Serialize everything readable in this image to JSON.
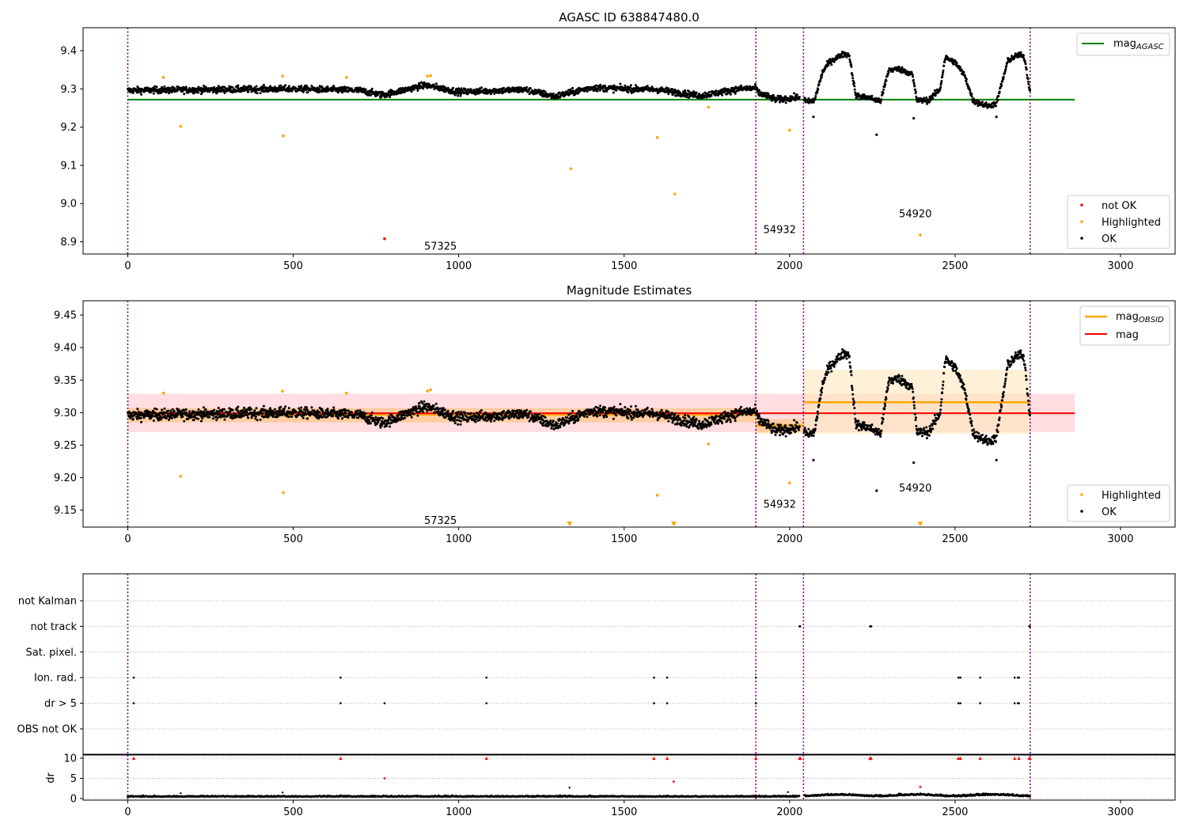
{
  "figure": {
    "title1": "AGASC ID 638847480.0",
    "title2": "Magnitude Estimates"
  },
  "colors": {
    "ok": "#000000",
    "not_ok": "#ff0000",
    "highlighted": "#ffa500",
    "mag_agasc": "#008000",
    "mag_obsid": "#ffa500",
    "mag": "#ff0000",
    "obs_separator": "#800080",
    "band_global": "#ffb3ba",
    "band_obs": "#fde6b8"
  },
  "chart_data": [
    {
      "type": "scatter",
      "title": "AGASC ID 638847480.0",
      "xlim": [
        -135,
        3165
      ],
      "ylim": [
        8.868,
        9.46
      ],
      "xticks": [
        0,
        500,
        1000,
        1500,
        2000,
        2500,
        3000
      ],
      "yticks": [
        8.9,
        9.0,
        9.1,
        9.2,
        9.3,
        9.4
      ],
      "ytick_labels": [
        "8.9",
        "9.0",
        "9.1",
        "9.2",
        "9.3",
        "9.4"
      ],
      "observation_boundaries": [
        0,
        1898,
        2042,
        2727
      ],
      "observation_labels": [
        {
          "text": "57325",
          "x": 945,
          "y": 8.89
        },
        {
          "text": "54932",
          "x": 1970,
          "y": 8.933
        },
        {
          "text": "54920",
          "x": 2380,
          "y": 8.975
        }
      ],
      "lines": [
        {
          "name": "mag_AGASC",
          "y": 9.272,
          "x_range": [
            0,
            2862
          ],
          "color": "#008000"
        }
      ],
      "legends": [
        {
          "position": "upper right",
          "entries": [
            {
              "label": "mag",
              "sub": "AGASC",
              "kind": "line",
              "color": "#008000"
            }
          ]
        },
        {
          "position": "lower right",
          "entries": [
            {
              "label": "not OK",
              "kind": "marker",
              "color": "#ff0000"
            },
            {
              "label": "Highlighted",
              "kind": "marker",
              "color": "#ffa500"
            },
            {
              "label": "OK",
              "kind": "marker",
              "color": "#000000"
            }
          ]
        }
      ],
      "series": [
        {
          "name": "OK",
          "description": "~2700 black points following the light curve shown in both magnitude panels"
        },
        {
          "name": "Highlighted",
          "points": [
            [
              108,
              9.33
            ],
            [
              160,
              9.202
            ],
            [
              468,
              9.333
            ],
            [
              470,
              9.177
            ],
            [
              661,
              9.33
            ],
            [
              906,
              9.333
            ],
            [
              915,
              9.335
            ],
            [
              1339,
              9.091
            ],
            [
              1600,
              9.173
            ],
            [
              1653,
              9.025
            ],
            [
              1755,
              9.252
            ],
            [
              2000,
              9.192
            ],
            [
              2395,
              8.918
            ]
          ]
        },
        {
          "name": "not OK",
          "points": [
            [
              776,
              8.908
            ]
          ]
        }
      ]
    },
    {
      "type": "scatter",
      "title": "Magnitude Estimates",
      "xlim": [
        -135,
        3165
      ],
      "ylim": [
        9.124,
        9.472
      ],
      "xticks": [
        0,
        500,
        1000,
        1500,
        2000,
        2500,
        3000
      ],
      "yticks": [
        9.15,
        9.2,
        9.25,
        9.3,
        9.35,
        9.4,
        9.45
      ],
      "ytick_labels": [
        "9.15",
        "9.20",
        "9.25",
        "9.30",
        "9.35",
        "9.40",
        "9.45"
      ],
      "observation_boundaries": [
        0,
        1898,
        2042,
        2727
      ],
      "observation_labels": [
        {
          "text": "57325",
          "x": 945,
          "y": 9.135
        },
        {
          "text": "54932",
          "x": 1970,
          "y": 9.16
        },
        {
          "text": "54920",
          "x": 2380,
          "y": 9.185
        }
      ],
      "bands": [
        {
          "name": "mag ± std",
          "x_range": [
            0,
            2862
          ],
          "y_range": [
            9.27,
            9.329
          ],
          "color": "#ffb3ba"
        },
        {
          "name": "obs 57325 ± std",
          "x_range": [
            0,
            1898
          ],
          "y_range": [
            9.285,
            9.307
          ],
          "color": "#ffa500"
        },
        {
          "name": "obs 54932 ± std",
          "x_range": [
            1898,
            2042
          ],
          "y_range": [
            9.268,
            9.29
          ],
          "color": "#ffa500"
        },
        {
          "name": "obs 54920 ± std",
          "x_range": [
            2042,
            2727
          ],
          "y_range": [
            9.267,
            9.366
          ],
          "color": "#fde6b8"
        }
      ],
      "lines": [
        {
          "name": "mag_OBSID",
          "segments": [
            {
              "x": [
                0,
                1898
              ],
              "y": 9.297
            },
            {
              "x": [
                1898,
                2042
              ],
              "y": 9.28
            },
            {
              "x": [
                2042,
                2727
              ],
              "y": 9.316
            }
          ],
          "color": "#ffa500"
        },
        {
          "name": "mag",
          "y": 9.299,
          "x_range": [
            0,
            2862
          ],
          "color": "#ff0000"
        }
      ],
      "legends": [
        {
          "position": "upper right",
          "entries": [
            {
              "label": "mag",
              "sub": "OBSID",
              "kind": "line",
              "color": "#ffa500"
            },
            {
              "label": "mag",
              "kind": "line",
              "color": "#ff0000"
            }
          ]
        },
        {
          "position": "lower right",
          "entries": [
            {
              "label": "Highlighted",
              "kind": "marker",
              "color": "#ffa500"
            },
            {
              "label": "OK",
              "kind": "marker",
              "color": "#000000"
            }
          ]
        }
      ],
      "series": [
        {
          "name": "Highlighted",
          "points": [
            [
              108,
              9.33
            ],
            [
              160,
              9.202
            ],
            [
              468,
              9.333
            ],
            [
              470,
              9.177
            ],
            [
              661,
              9.33
            ],
            [
              906,
              9.333
            ],
            [
              915,
              9.335
            ],
            [
              1600,
              9.173
            ],
            [
              1755,
              9.252
            ],
            [
              2000,
              9.192
            ]
          ]
        },
        {
          "name": "Highlighted (below axis)",
          "points": [
            [
              1335,
              9.124
            ],
            [
              1650,
              9.124
            ],
            [
              2395,
              9.124
            ]
          ]
        },
        {
          "name": "OK",
          "light_curve": [
            [
              0,
              9.296
            ],
            [
              500,
              9.3
            ],
            [
              700,
              9.296
            ],
            [
              770,
              9.284
            ],
            [
              900,
              9.31
            ],
            [
              1000,
              9.292
            ],
            [
              1200,
              9.298
            ],
            [
              1290,
              9.28
            ],
            [
              1400,
              9.303
            ],
            [
              1600,
              9.298
            ],
            [
              1730,
              9.282
            ],
            [
              1850,
              9.3
            ],
            [
              1898,
              9.302
            ],
            [
              1905,
              9.29
            ],
            [
              1960,
              9.272
            ],
            [
              2000,
              9.275
            ],
            [
              2042,
              9.28
            ],
            [
              2050,
              9.265
            ],
            [
              2075,
              9.27
            ],
            [
              2100,
              9.345
            ],
            [
              2120,
              9.37
            ],
            [
              2160,
              9.39
            ],
            [
              2180,
              9.39
            ],
            [
              2200,
              9.282
            ],
            [
              2240,
              9.277
            ],
            [
              2275,
              9.268
            ],
            [
              2300,
              9.35
            ],
            [
              2330,
              9.352
            ],
            [
              2370,
              9.34
            ],
            [
              2385,
              9.27
            ],
            [
              2420,
              9.27
            ],
            [
              2455,
              9.3
            ],
            [
              2470,
              9.382
            ],
            [
              2500,
              9.37
            ],
            [
              2530,
              9.333
            ],
            [
              2555,
              9.268
            ],
            [
              2600,
              9.255
            ],
            [
              2625,
              9.262
            ],
            [
              2660,
              9.375
            ],
            [
              2695,
              9.39
            ],
            [
              2710,
              9.38
            ],
            [
              2727,
              9.29
            ]
          ],
          "outliers": [
            [
              2072,
              9.227
            ],
            [
              2263,
              9.18
            ],
            [
              2375,
              9.223
            ],
            [
              2625,
              9.227
            ]
          ]
        }
      ]
    },
    {
      "type": "scatter",
      "title": "",
      "xlim": [
        -135,
        3165
      ],
      "categories": [
        "not Kalman",
        "not track",
        "Sat. pixel.",
        "Ion. rad.",
        "dr > 5",
        "OBS not OK"
      ],
      "observation_boundaries": [
        0,
        1898,
        2042,
        2727
      ],
      "flags": {
        "not Kalman": [],
        "not track": [
          2030,
          2032,
          2243,
          2245,
          2247,
          2724,
          2726
        ],
        "Sat. pixel.": [],
        "Ion. rad.": [
          18,
          643,
          1084,
          1590,
          1630,
          1898,
          2510,
          2516,
          2576,
          2680,
          2690,
          2693
        ],
        "dr > 5": [
          18,
          643,
          776,
          1084,
          1590,
          1630,
          1898,
          2510,
          2516,
          2576,
          2680,
          2690,
          2693
        ],
        "OBS not OK": []
      }
    },
    {
      "type": "scatter",
      "title": "",
      "ylabel": "dr",
      "xlim": [
        -135,
        3165
      ],
      "ylim": [
        -0.4,
        10.8
      ],
      "xticks": [
        0,
        500,
        1000,
        1500,
        2000,
        2500,
        3000
      ],
      "yticks": [
        0,
        5,
        10
      ],
      "ytick_labels": [
        "0",
        "5",
        "10"
      ],
      "observation_boundaries": [
        0,
        1898,
        2042,
        2727
      ],
      "series": [
        {
          "name": "OK",
          "description": "dr baseline ~0.3–0.7 for x < 2042, ~0.5–1.5 for x > 2042"
        },
        {
          "name": "OK (isolated)",
          "points": [
            [
              160,
              1.3
            ],
            [
              468,
              1.5
            ],
            [
              1335,
              2.7
            ],
            [
              1995,
              1.6
            ]
          ]
        },
        {
          "name": "not OK (clipped at 10)",
          "points": [
            [
              18,
              10
            ],
            [
              643,
              10
            ],
            [
              1084,
              10
            ],
            [
              1590,
              10
            ],
            [
              1630,
              10
            ],
            [
              1898,
              10
            ],
            [
              2030,
              10
            ],
            [
              2033,
              10
            ],
            [
              2243,
              10
            ],
            [
              2246,
              10
            ],
            [
              2510,
              10
            ],
            [
              2516,
              10
            ],
            [
              2576,
              10
            ],
            [
              2680,
              10
            ],
            [
              2693,
              10
            ],
            [
              2724,
              10
            ],
            [
              2727,
              10
            ]
          ]
        },
        {
          "name": "not OK",
          "points": [
            [
              776,
              5.0
            ],
            [
              1650,
              4.2
            ],
            [
              2395,
              2.9
            ]
          ]
        }
      ]
    }
  ]
}
